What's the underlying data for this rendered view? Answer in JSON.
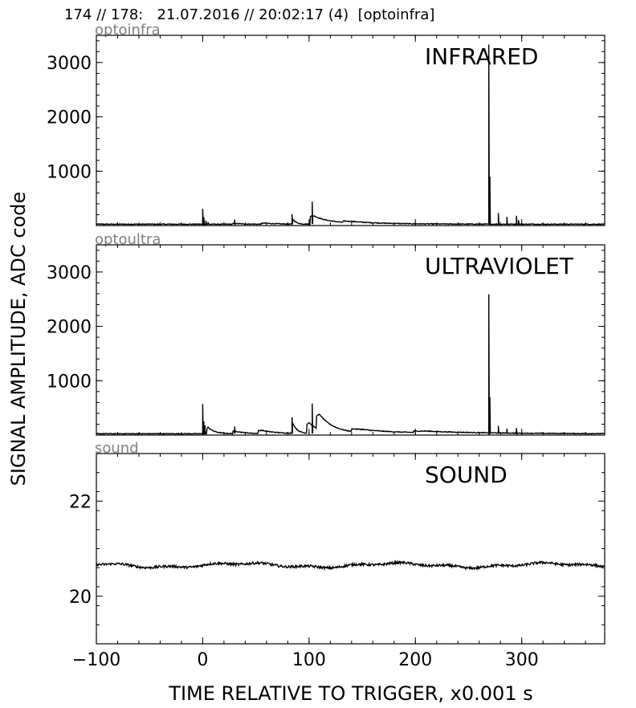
{
  "header": {
    "text": "174 // 178:   21.07.2016 // 20:02:17 (4)  [optoinfra]"
  },
  "chart_data": {
    "type": "line",
    "xlabel": "TIME RELATIVE TO TRIGGER,   x0.001 s",
    "ylabel": "SIGNAL AMPLITUDE,  ADC code",
    "xlim": [
      -100,
      378
    ],
    "x_ticks": [
      -100,
      0,
      100,
      200,
      300
    ],
    "x_tick_labels": [
      "−100",
      "0",
      "100",
      "200",
      "300"
    ],
    "line_color": "#000000",
    "panels": [
      {
        "channel": "optoinfra",
        "label": "INFRARED",
        "ylim": [
          0,
          3500
        ],
        "y_ticks": [
          1000,
          2000,
          3000
        ],
        "y_tick_labels": [
          "1000",
          "2000",
          "3000"
        ],
        "baseline": 25,
        "bumps": [
          [
            30,
            8,
            15
          ],
          [
            58,
            12,
            20
          ],
          [
            85,
            3,
            90
          ],
          [
            105,
            20,
            130
          ],
          [
            140,
            40,
            30
          ],
          [
            102,
            5,
            40
          ]
        ],
        "spikes": [
          [
            0,
            310
          ],
          [
            1,
            150
          ],
          [
            3,
            90
          ],
          [
            5,
            60
          ],
          [
            30,
            110
          ],
          [
            84,
            210
          ],
          [
            103,
            440
          ],
          [
            269,
            3330
          ],
          [
            270,
            900
          ],
          [
            278,
            230
          ],
          [
            286,
            160
          ],
          [
            295,
            180
          ],
          [
            297,
            100
          ]
        ]
      },
      {
        "channel": "optoultra",
        "label": "ULTRAVIOLET",
        "ylim": [
          0,
          3500
        ],
        "y_ticks": [
          1000,
          2000,
          3000
        ],
        "y_tick_labels": [
          "1000",
          "2000",
          "3000"
        ],
        "baseline": 25,
        "bumps": [
          [
            5,
            6,
            120
          ],
          [
            30,
            10,
            50
          ],
          [
            55,
            15,
            60
          ],
          [
            85,
            4,
            180
          ],
          [
            100,
            10,
            200
          ],
          [
            110,
            15,
            280
          ],
          [
            150,
            50,
            60
          ],
          [
            210,
            60,
            30
          ]
        ],
        "spikes": [
          [
            0,
            570
          ],
          [
            1,
            250
          ],
          [
            2,
            180
          ],
          [
            30,
            160
          ],
          [
            84,
            330
          ],
          [
            103,
            580
          ],
          [
            269,
            2590
          ],
          [
            270,
            700
          ],
          [
            278,
            170
          ],
          [
            286,
            120
          ],
          [
            295,
            130
          ]
        ]
      },
      {
        "channel": "sound",
        "label": "SOUND",
        "ylim": [
          19,
          23
        ],
        "y_ticks": [
          20,
          22
        ],
        "y_tick_labels": [
          "20",
          "22"
        ],
        "baseline": 20.65,
        "noise": 0.025,
        "wobble": 0.04
      }
    ]
  }
}
